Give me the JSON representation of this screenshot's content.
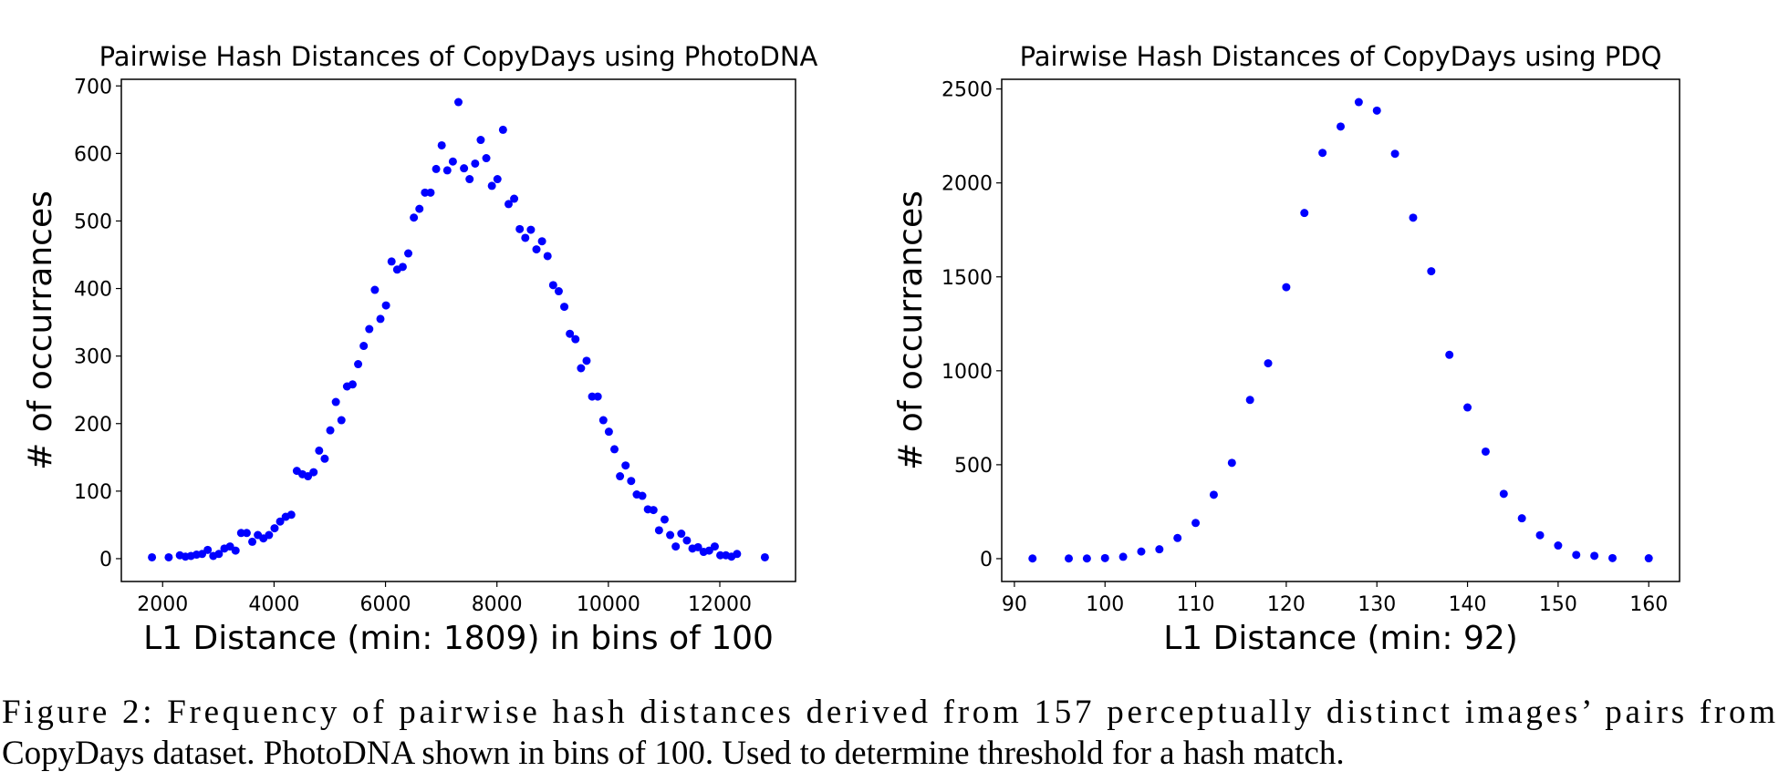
{
  "chart_data": [
    {
      "type": "scatter",
      "title": "Pairwise Hash Distances of CopyDays using PhotoDNA",
      "x_label": "L1 Distance (min: 1809) in bins of 100",
      "y_label": "# of occurrances",
      "series": [
        {
          "color": "#0000ff",
          "x": [
            1809,
            2109,
            2309,
            2409,
            2509,
            2609,
            2709,
            2809,
            2909,
            3009,
            3109,
            3209,
            3309,
            3409,
            3509,
            3609,
            3709,
            3809,
            3909,
            4009,
            4109,
            4209,
            4309,
            4409,
            4509,
            4609,
            4709,
            4809,
            4909,
            5009,
            5109,
            5209,
            5309,
            5409,
            5509,
            5609,
            5709,
            5809,
            5909,
            6009,
            6109,
            6209,
            6309,
            6409,
            6509,
            6609,
            6709,
            6809,
            6909,
            7009,
            7109,
            7209,
            7309,
            7409,
            7509,
            7609,
            7709,
            7809,
            7909,
            8009,
            8109,
            8209,
            8309,
            8409,
            8509,
            8609,
            8709,
            8809,
            8909,
            9009,
            9109,
            9209,
            9309,
            9409,
            9509,
            9609,
            9709,
            9809,
            9909,
            10009,
            10109,
            10209,
            10309,
            10409,
            10509,
            10609,
            10709,
            10809,
            10909,
            11009,
            11109,
            11209,
            11309,
            11409,
            11509,
            11609,
            11709,
            11809,
            11909,
            12009,
            12109,
            12209,
            12309,
            12809
          ],
          "values": [
            2,
            2,
            5,
            3,
            4,
            6,
            7,
            13,
            4,
            7,
            15,
            18,
            12,
            38,
            38,
            25,
            35,
            30,
            35,
            45,
            55,
            62,
            65,
            130,
            125,
            122,
            128,
            160,
            148,
            190,
            232,
            205,
            255,
            258,
            288,
            315,
            340,
            398,
            355,
            375,
            440,
            428,
            432,
            452,
            505,
            518,
            542,
            542,
            577,
            612,
            575,
            588,
            676,
            578,
            562,
            585,
            620,
            593,
            552,
            562,
            635,
            525,
            533,
            488,
            475,
            487,
            458,
            470,
            448,
            405,
            396,
            373,
            333,
            325,
            282,
            293,
            240,
            240,
            205,
            188,
            162,
            122,
            138,
            115,
            95,
            93,
            73,
            72,
            42,
            58,
            35,
            18,
            37,
            27,
            15,
            17,
            10,
            12,
            18,
            5,
            5,
            3,
            7,
            2
          ]
        }
      ],
      "xlim": [
        1259,
        13359
      ],
      "ylim": [
        -33.8,
        709.8
      ],
      "xticks": [
        2000,
        4000,
        6000,
        8000,
        10000,
        12000
      ],
      "yticks": [
        0,
        100,
        200,
        300,
        400,
        500,
        600,
        700
      ]
    },
    {
      "type": "scatter",
      "title": "Pairwise Hash Distances of CopyDays using PDQ",
      "x_label": "L1 Distance (min: 92)",
      "y_label": "# of occurrances",
      "series": [
        {
          "color": "#0000ff",
          "x": [
            92,
            96,
            98,
            100,
            102,
            104,
            106,
            108,
            110,
            112,
            114,
            116,
            118,
            120,
            122,
            124,
            126,
            128,
            130,
            132,
            134,
            136,
            138,
            140,
            142,
            144,
            146,
            148,
            150,
            152,
            154,
            156,
            160
          ],
          "values": [
            1,
            1,
            1,
            3,
            10,
            38,
            50,
            110,
            190,
            340,
            510,
            845,
            1040,
            1445,
            1840,
            2160,
            2300,
            2430,
            2385,
            2155,
            1815,
            1530,
            1085,
            805,
            570,
            345,
            215,
            125,
            70,
            20,
            15,
            3,
            2
          ]
        }
      ],
      "xlim": [
        88.6,
        163.4
      ],
      "ylim": [
        -121.5,
        2551.5
      ],
      "xticks": [
        90,
        100,
        110,
        120,
        130,
        140,
        150,
        160
      ],
      "yticks": [
        0,
        500,
        1000,
        1500,
        2000,
        2500
      ]
    }
  ],
  "caption": [
    "Figure 2: Frequency of pairwise hash distances derived from 157 perceptually distinct images’ pairs from",
    "CopyDays dataset. PhotoDNA shown in bins of 100. Used to determine threshold for a hash match."
  ]
}
